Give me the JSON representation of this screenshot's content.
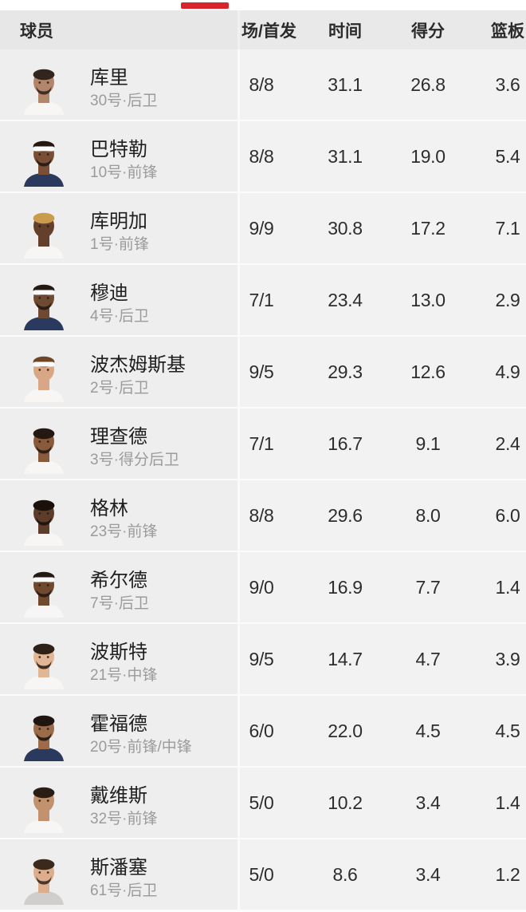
{
  "tab_indicator": {
    "color": "#d8252c"
  },
  "table": {
    "columns": [
      {
        "key": "player",
        "label": "球员"
      },
      {
        "key": "games",
        "label": "场/首发"
      },
      {
        "key": "time",
        "label": "时间"
      },
      {
        "key": "points",
        "label": "得分"
      },
      {
        "key": "rebounds",
        "label": "篮板"
      }
    ],
    "rows": [
      {
        "name": "库里",
        "detail": "30号·后卫",
        "games": "8/8",
        "time": "31.1",
        "points": "26.8",
        "rebounds": "3.6",
        "avatar": {
          "skin": "#b3856a",
          "hair": "#32251d",
          "jersey": "#f7f6f4",
          "headband": false,
          "beard": true
        }
      },
      {
        "name": "巴特勒",
        "detail": "10号·前锋",
        "games": "8/8",
        "time": "31.1",
        "points": "19.0",
        "rebounds": "5.4",
        "avatar": {
          "skin": "#7a4f36",
          "hair": "#241812",
          "jersey": "#2a3a5e",
          "headband": true,
          "beard": true
        }
      },
      {
        "name": "库明加",
        "detail": "1号·前锋",
        "games": "9/9",
        "time": "30.8",
        "points": "17.2",
        "rebounds": "7.1",
        "avatar": {
          "skin": "#64402c",
          "hair": "#c99b4a",
          "jersey": "#f7f6f4",
          "headband": false,
          "beard": false
        }
      },
      {
        "name": "穆迪",
        "detail": "4号·后卫",
        "games": "7/1",
        "time": "23.4",
        "points": "13.0",
        "rebounds": "2.9",
        "avatar": {
          "skin": "#6f4a33",
          "hair": "#241812",
          "jersey": "#2a3a5e",
          "headband": true,
          "beard": true
        }
      },
      {
        "name": "波杰姆斯基",
        "detail": "2号·后卫",
        "games": "9/5",
        "time": "29.3",
        "points": "12.6",
        "rebounds": "4.9",
        "avatar": {
          "skin": "#d9a785",
          "hair": "#6e4526",
          "jersey": "#f7f6f4",
          "headband": true,
          "beard": false
        }
      },
      {
        "name": "理查德",
        "detail": "3号·得分后卫",
        "games": "7/1",
        "time": "16.7",
        "points": "9.1",
        "rebounds": "2.4",
        "avatar": {
          "skin": "#8a5a3c",
          "hair": "#241812",
          "jersey": "#f7f6f4",
          "headband": false,
          "beard": true
        }
      },
      {
        "name": "格林",
        "detail": "23号·前锋",
        "games": "8/8",
        "time": "29.6",
        "points": "8.0",
        "rebounds": "6.0",
        "avatar": {
          "skin": "#5d3d2a",
          "hair": "#1a110c",
          "jersey": "#f7f6f4",
          "headband": false,
          "beard": true
        }
      },
      {
        "name": "希尔德",
        "detail": "7号·后卫",
        "games": "9/0",
        "time": "16.9",
        "points": "7.7",
        "rebounds": "1.4",
        "avatar": {
          "skin": "#70492f",
          "hair": "#241812",
          "jersey": "#f7f6f4",
          "headband": true,
          "beard": true
        }
      },
      {
        "name": "波斯特",
        "detail": "21号·中锋",
        "games": "9/5",
        "time": "14.7",
        "points": "4.7",
        "rebounds": "3.9",
        "avatar": {
          "skin": "#e2b694",
          "hair": "#2e2118",
          "jersey": "#f7f6f4",
          "headband": false,
          "beard": true
        }
      },
      {
        "name": "霍福德",
        "detail": "20号·前锋/中锋",
        "games": "6/0",
        "time": "22.0",
        "points": "4.5",
        "rebounds": "4.5",
        "avatar": {
          "skin": "#9c6b49",
          "hair": "#201611",
          "jersey": "#2a3a5e",
          "headband": false,
          "beard": true
        }
      },
      {
        "name": "戴维斯",
        "detail": "32号·前锋",
        "games": "5/0",
        "time": "10.2",
        "points": "3.4",
        "rebounds": "1.4",
        "avatar": {
          "skin": "#c2926f",
          "hair": "#2a1d14",
          "jersey": "#f7f6f4",
          "headband": false,
          "beard": false
        }
      },
      {
        "name": "斯潘塞",
        "detail": "61号·后卫",
        "games": "5/0",
        "time": "8.6",
        "points": "3.4",
        "rebounds": "1.2",
        "avatar": {
          "skin": "#ddae8d",
          "hair": "#3a2a1e",
          "jersey": "#cfcecd",
          "headband": false,
          "beard": true
        }
      }
    ]
  }
}
